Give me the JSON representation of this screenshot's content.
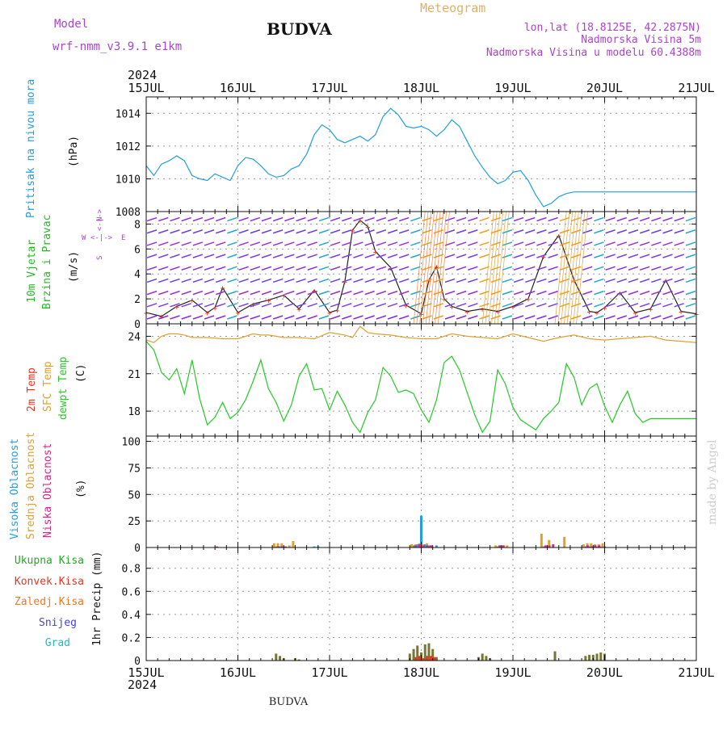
{
  "header": {
    "model_label": "Model",
    "model_name": "wrf-nmm_v3.9.1 e1km",
    "title": "BUDVA",
    "meteogram_label": "Meteogram",
    "lonlat": "lon,lat (18.8125E, 42.2875N)",
    "elevation": "Nadmorska Visina 5m",
    "model_elevation": "Nadmorska Visina u modelu 60.4388m",
    "year": "2024",
    "footer_station": "BUDVA",
    "watermark": "made by Angel"
  },
  "colors": {
    "pressure": "#1ea0e0",
    "wind_label": "#22bb22",
    "wind_unit": "#aa44cc",
    "temp2m": "#ee3322",
    "sfc_temp": "#e0a030",
    "dewpt": "#22cc22",
    "cloud_high": "#1ea0e0",
    "cloud_mid": "#e0a030",
    "cloud_low": "#dd2288",
    "precip_total": "#22aa22",
    "precip_conv": "#ee3322",
    "precip_frz": "#ee7722",
    "precip_snow": "#4444dd",
    "precip_hail": "#22bbbb"
  },
  "panels": {
    "pressure": {
      "labels": [
        "Pritisak na nivou mora",
        "(hPa)"
      ]
    },
    "wind": {
      "labels": [
        "10m Vjetar",
        "Brzina i Pravac",
        "(m/s)"
      ],
      "compass": {
        "n": "N",
        "s": "S",
        "e": "E",
        "w": "W",
        "arrows": "<-|->"
      }
    },
    "temp": {
      "labels": [
        "2m Temp",
        "SFC Temp",
        "dewpt Temp",
        "(C)"
      ]
    },
    "cloud": {
      "labels": [
        "Visoka Oblacnost",
        "Srednja Oblacnost",
        "Niska Oblacnost",
        "(%)"
      ]
    },
    "precip": {
      "labels": [
        "Ukupna Kisa",
        "Konvek.Kisa",
        "Zaledj.Kisa",
        "Snijeg",
        "Grad",
        "1hr Precip (mm)"
      ]
    }
  },
  "chart_data": [
    {
      "type": "line",
      "name": "pressure",
      "xlim": [
        0,
        144
      ],
      "ylim": [
        1008,
        1015
      ],
      "yticks": [
        1008,
        1010,
        1012,
        1014
      ],
      "xticks": [
        "15JUL",
        "16JUL",
        "17JUL",
        "18JUL",
        "19JUL",
        "20JUL",
        "21JUL"
      ],
      "grid": true,
      "series": [
        {
          "x": [
            0,
            2,
            4,
            6,
            8,
            10,
            12,
            14,
            16,
            18,
            20,
            22,
            24,
            26,
            28,
            30,
            32,
            34,
            36,
            38,
            40,
            42,
            44,
            46,
            48,
            50,
            52,
            54,
            56,
            58,
            60,
            62,
            64,
            66,
            68,
            70,
            72,
            74,
            76,
            78,
            80,
            82,
            84,
            86,
            88,
            90,
            92,
            94,
            96,
            98,
            100,
            102,
            104,
            106,
            108,
            110,
            112,
            114,
            116,
            118,
            120,
            122,
            124,
            126,
            128,
            130,
            132,
            134,
            136,
            138,
            140,
            142,
            144
          ],
          "values": [
            1010.8,
            1010.2,
            1010.9,
            1011.1,
            1011.4,
            1011.1,
            1010.2,
            1010.0,
            1009.9,
            1010.3,
            1010.1,
            1009.9,
            1010.8,
            1011.3,
            1011.2,
            1010.8,
            1010.3,
            1010.1,
            1010.2,
            1010.6,
            1010.8,
            1011.5,
            1012.7,
            1013.3,
            1013.0,
            1012.4,
            1012.2,
            1012.4,
            1012.6,
            1012.3,
            1012.7,
            1013.8,
            1014.3,
            1013.9,
            1013.2,
            1013.1,
            1013.2,
            1013.0,
            1012.6,
            1013.0,
            1013.6,
            1013.2,
            1012.3,
            1011.4,
            1010.7,
            1010.1,
            1009.7,
            1009.9,
            1010.4,
            1010.5,
            1009.9,
            1009.0,
            1008.3,
            1008.5,
            1008.9,
            1009.1,
            1009.2,
            1009.2,
            1009.2,
            1009.2,
            1009.2,
            1009.2,
            1009.2,
            1009.2,
            1009.2,
            1009.2,
            1009.2,
            1009.2,
            1009.2,
            1009.2,
            1009.2,
            1009.2,
            1009.2
          ]
        }
      ]
    },
    {
      "type": "line",
      "name": "wind_speed",
      "xlim": [
        0,
        144
      ],
      "ylim": [
        0,
        9
      ],
      "yticks": [
        0,
        2,
        4,
        6,
        8
      ],
      "grid": true,
      "series": [
        {
          "x": [
            0,
            4,
            8,
            12,
            16,
            18,
            20,
            24,
            28,
            32,
            36,
            40,
            44,
            48,
            50,
            52,
            54,
            56,
            58,
            60,
            64,
            68,
            72,
            74,
            76,
            78,
            80,
            84,
            88,
            92,
            96,
            100,
            104,
            108,
            112,
            116,
            118,
            120,
            124,
            128,
            132,
            136,
            140,
            144
          ],
          "values": [
            0.9,
            0.6,
            1.4,
            1.9,
            0.9,
            1.3,
            2.9,
            0.9,
            1.6,
            1.9,
            2.3,
            1.2,
            2.7,
            0.9,
            1.1,
            3.4,
            7.5,
            8.3,
            7.8,
            5.8,
            4.5,
            1.5,
            0.8,
            3.5,
            4.6,
            2.0,
            1.4,
            1.0,
            1.2,
            1.0,
            1.4,
            2.0,
            5.4,
            7.1,
            3.5,
            1.0,
            0.9,
            1.3,
            2.5,
            0.9,
            1.2,
            3.5,
            1.0,
            0.8
          ]
        }
      ]
    },
    {
      "type": "line",
      "name": "temperature",
      "xlim": [
        0,
        144
      ],
      "ylim": [
        16,
        25
      ],
      "yticks": [
        18,
        21,
        24
      ],
      "grid": true,
      "series": [
        {
          "x": [
            0,
            2,
            4,
            6,
            8,
            10,
            12,
            16,
            20,
            24,
            28,
            30,
            32,
            34,
            36,
            40,
            44,
            48,
            50,
            52,
            54,
            56,
            58,
            60,
            64,
            68,
            72,
            76,
            80,
            84,
            88,
            92,
            96,
            100,
            104,
            108,
            112,
            116,
            120,
            124,
            128,
            132,
            136,
            140,
            144
          ],
          "values": [
            23.7,
            23.5,
            24.0,
            24.2,
            24.2,
            24.1,
            23.9,
            23.9,
            23.8,
            23.8,
            24.2,
            24.1,
            24.1,
            24.0,
            23.9,
            23.9,
            23.8,
            24.3,
            24.2,
            24.1,
            23.9,
            24.8,
            24.3,
            24.2,
            24.1,
            23.9,
            23.8,
            23.8,
            24.2,
            24.0,
            23.9,
            23.8,
            24.2,
            23.9,
            23.6,
            23.9,
            24.1,
            23.8,
            23.7,
            23.8,
            23.9,
            24.0,
            23.7,
            23.6,
            23.5
          ]
        },
        {
          "x": [
            0,
            2,
            4,
            6,
            8,
            10,
            12,
            14,
            16,
            18,
            20,
            22,
            24,
            26,
            28,
            30,
            32,
            34,
            36,
            38,
            40,
            42,
            44,
            46,
            48,
            50,
            52,
            54,
            56,
            58,
            60,
            62,
            64,
            66,
            68,
            70,
            72,
            74,
            76,
            78,
            80,
            82,
            84,
            86,
            88,
            90,
            92,
            94,
            96,
            98,
            100,
            102,
            104,
            106,
            108,
            110,
            112,
            114,
            116,
            118,
            120,
            122,
            124,
            126,
            128,
            130,
            132,
            134,
            136,
            138,
            140,
            142,
            144
          ],
          "values": [
            23.6,
            22.9,
            21.1,
            20.5,
            21.4,
            19.4,
            22.1,
            19.0,
            16.9,
            17.5,
            18.7,
            17.4,
            17.9,
            18.9,
            20.4,
            22.1,
            19.8,
            18.7,
            17.2,
            18.5,
            20.8,
            21.8,
            19.7,
            19.8,
            18.1,
            19.6,
            18.5,
            17.1,
            16.3,
            17.9,
            18.9,
            21.5,
            20.8,
            19.5,
            19.7,
            19.4,
            18.1,
            17.1,
            18.9,
            21.9,
            22.4,
            21.3,
            19.5,
            17.7,
            16.3,
            17.2,
            21.3,
            20.2,
            18.3,
            17.3,
            16.9,
            16.5,
            17.4,
            18.0,
            18.7,
            21.8,
            20.7,
            18.5,
            19.8,
            20.2,
            18.4,
            17.1,
            18.5,
            19.6,
            17.8,
            17.1,
            17.4,
            17.4,
            17.4,
            17.4,
            17.4,
            17.4,
            17.4
          ]
        }
      ]
    },
    {
      "type": "bar",
      "name": "cloud_cover",
      "xlim": [
        0,
        144
      ],
      "ylim": [
        0,
        105
      ],
      "yticks": [
        0,
        25,
        50,
        75,
        100
      ],
      "grid": true,
      "series": [
        {
          "x": [
            34,
            35,
            36,
            44,
            45,
            70,
            71,
            72,
            73,
            74,
            76,
            92,
            93,
            104,
            105,
            115,
            116,
            117,
            118,
            119,
            120
          ],
          "values": [
            1,
            1,
            1,
            1,
            1,
            2,
            3,
            30,
            3,
            2,
            2,
            1,
            1,
            1,
            1,
            1,
            1,
            1,
            1,
            1,
            1
          ]
        },
        {
          "x": [
            34,
            35,
            36,
            38,
            39,
            70,
            71,
            72,
            73,
            74,
            92,
            93,
            94,
            95,
            104,
            106,
            110,
            115,
            116,
            117,
            118,
            119,
            120
          ],
          "values": [
            4,
            4,
            4,
            2,
            6,
            3,
            3,
            4,
            3,
            4,
            2,
            2,
            2,
            2,
            13,
            7,
            10,
            3,
            4,
            4,
            3,
            3,
            4
          ]
        },
        {
          "x": [
            18,
            34,
            35,
            36,
            70,
            71,
            72,
            73,
            74,
            92,
            93,
            104,
            105,
            106,
            115,
            116,
            117,
            118
          ],
          "values": [
            1,
            1,
            1,
            1,
            2,
            3,
            2,
            2,
            2,
            2,
            2,
            2,
            2,
            3,
            2,
            1,
            2,
            2
          ]
        }
      ]
    },
    {
      "type": "bar",
      "name": "precipitation",
      "xlim": [
        0,
        144
      ],
      "ylim": [
        0,
        0.98
      ],
      "yticks": [
        0,
        0.2,
        0.4,
        0.6,
        0.8
      ],
      "grid": true,
      "series": [
        {
          "x": [
            34,
            35,
            36,
            39,
            40,
            69,
            70,
            71,
            72,
            73,
            74,
            75,
            76,
            87,
            88,
            89,
            90,
            107,
            115,
            116,
            117,
            118,
            119,
            120
          ],
          "values": [
            0.06,
            0.04,
            0.02,
            0.02,
            0.01,
            0.06,
            0.1,
            0.13,
            0.07,
            0.14,
            0.15,
            0.1,
            0.03,
            0.03,
            0.06,
            0.04,
            0.02,
            0.08,
            0.04,
            0.05,
            0.05,
            0.06,
            0.07,
            0.06
          ]
        },
        {
          "x": [
            70,
            71,
            72,
            73,
            74,
            75
          ],
          "values": [
            0.03,
            0.04,
            0.02,
            0.04,
            0.04,
            0.03
          ]
        }
      ]
    }
  ]
}
